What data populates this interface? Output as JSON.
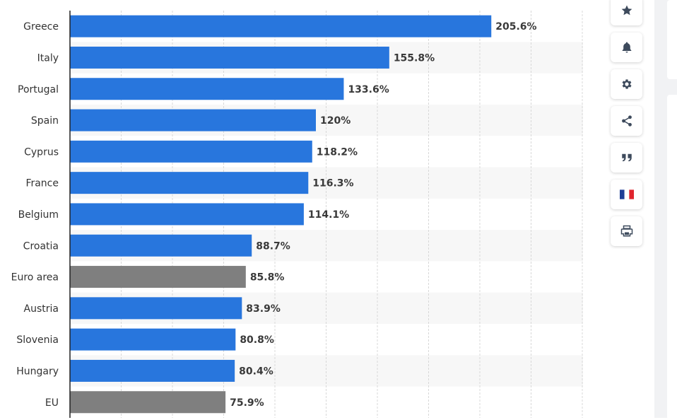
{
  "chart_data": {
    "type": "bar",
    "orientation": "horizontal",
    "categories": [
      "Greece",
      "Italy",
      "Portugal",
      "Spain",
      "Cyprus",
      "France",
      "Belgium",
      "Croatia",
      "Euro area",
      "Austria",
      "Slovenia",
      "Hungary",
      "EU"
    ],
    "values": [
      205.6,
      155.8,
      133.6,
      120,
      118.2,
      116.3,
      114.1,
      88.7,
      85.8,
      83.9,
      80.8,
      80.4,
      75.9
    ],
    "value_labels": [
      "205.6%",
      "155.8%",
      "133.6%",
      "120%",
      "118.2%",
      "116.3%",
      "114.1%",
      "88.7%",
      "85.8%",
      "83.9%",
      "80.8%",
      "80.4%",
      "75.9%"
    ],
    "highlighted": [
      "Euro area",
      "EU"
    ],
    "xlim": [
      0,
      250
    ],
    "grid_step": 25,
    "unit": "%",
    "colors": {
      "default": "#2876dd",
      "highlight": "#7f7f7f",
      "grid": "#d8d8d8",
      "stripe": "#f7f7f7",
      "axis": "#222222"
    }
  },
  "toolbar": {
    "buttons": [
      {
        "name": "favorite-button",
        "icon": "star-icon"
      },
      {
        "name": "notification-button",
        "icon": "bell-icon"
      },
      {
        "name": "settings-button",
        "icon": "gear-icon"
      },
      {
        "name": "share-button",
        "icon": "share-icon"
      },
      {
        "name": "cite-button",
        "icon": "quote-icon"
      },
      {
        "name": "language-button",
        "icon": "french-flag-icon"
      },
      {
        "name": "print-button",
        "icon": "printer-icon"
      }
    ]
  }
}
